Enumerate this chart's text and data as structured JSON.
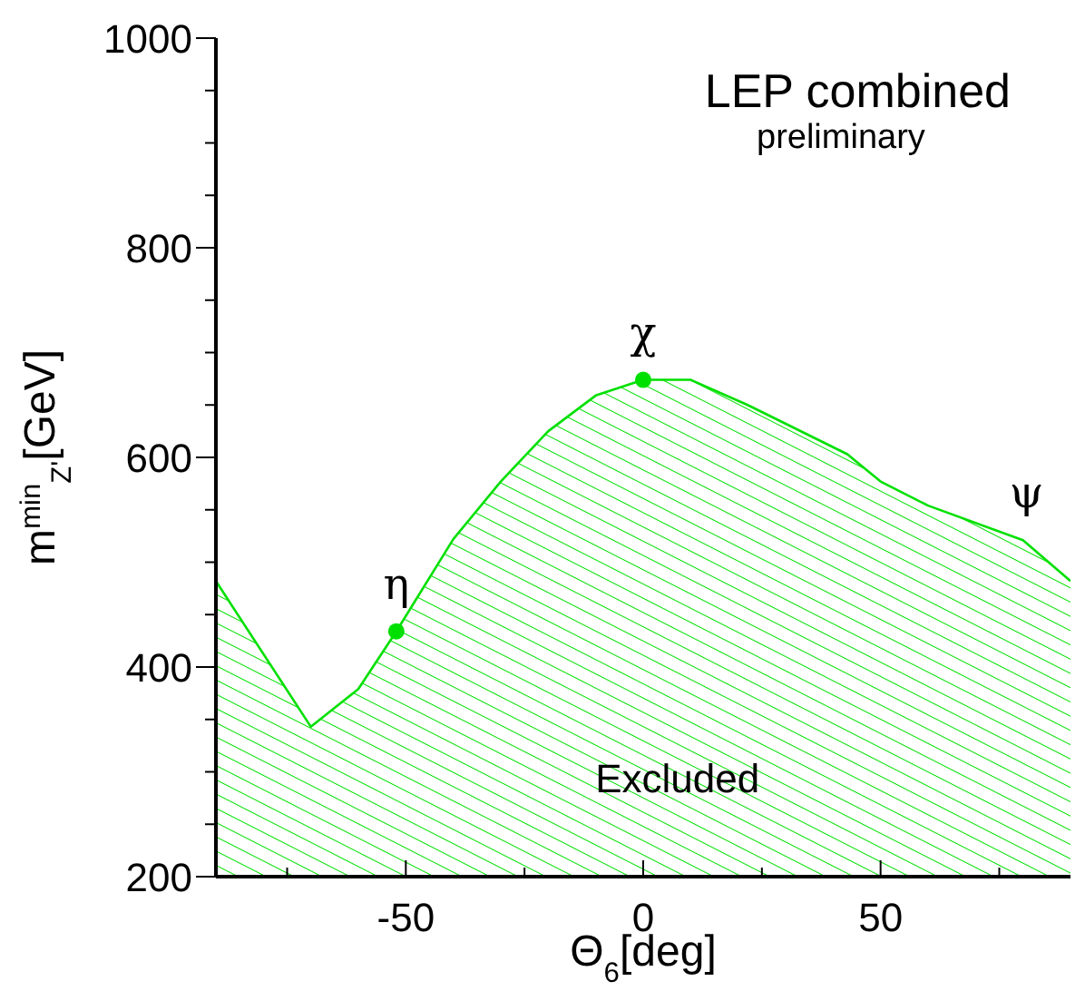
{
  "chart_data": {
    "type": "area",
    "xlabel": "Θ$_{6}$[deg]",
    "ylabel": "m$^{min}$$_{Z'}$[GeV]",
    "xlim": [
      -90,
      90
    ],
    "ylim": [
      200,
      1000
    ],
    "xticks": [
      {
        "value": -75,
        "label": null
      },
      -50,
      {
        "value": -25,
        "label": null
      },
      0,
      {
        "value": 25,
        "label": null
      },
      50,
      {
        "value": 75,
        "label": null
      }
    ],
    "yticks": [
      200,
      {
        "value": 250,
        "label": null
      },
      {
        "value": 300,
        "label": null
      },
      {
        "value": 350,
        "label": null
      },
      400,
      {
        "value": 450,
        "label": null
      },
      {
        "value": 500,
        "label": null
      },
      {
        "value": 550,
        "label": null
      },
      600,
      {
        "value": 650,
        "label": null
      },
      {
        "value": 700,
        "label": null
      },
      {
        "value": 750,
        "label": null
      },
      800,
      {
        "value": 850,
        "label": null
      },
      {
        "value": 900,
        "label": null
      },
      {
        "value": 950,
        "label": null
      },
      1000
    ],
    "grid": false,
    "series": [
      {
        "color": "#00e000",
        "x": [
          -90,
          -70,
          -60,
          -52,
          -40,
          -30,
          -20,
          -10,
          0,
          10,
          22,
          43,
          50,
          60,
          80,
          90
        ],
        "values": [
          482,
          343,
          379,
          434,
          522,
          577,
          625,
          659,
          674,
          674,
          650,
          603,
          577,
          554,
          521,
          482
        ]
      },
      {
        "type": "scatter",
        "color": "#00e000",
        "marker": "circle",
        "x": [
          -52,
          0
        ],
        "values": [
          434,
          674
        ]
      }
    ],
    "annotations": [
      "LEP combined",
      "preliminary",
      "Excluded",
      {
        "text": "η",
        "x": -52,
        "y": 434
      },
      {
        "text": "χ",
        "x": 0,
        "y": 674
      },
      {
        "text": "ψ",
        "x": 80,
        "y": 521
      }
    ]
  }
}
